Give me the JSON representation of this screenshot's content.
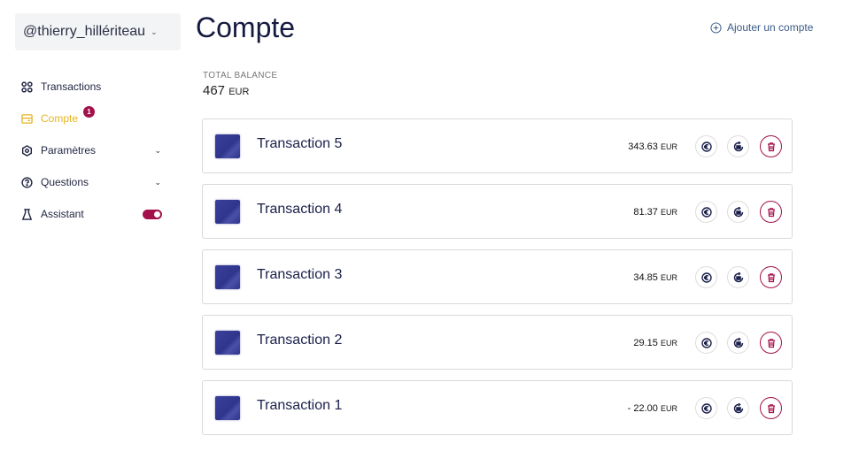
{
  "user": {
    "handle": "@thierry_hillériteau"
  },
  "sidebar": {
    "items": [
      {
        "label": "Transactions",
        "icon": "grid-icon"
      },
      {
        "label": "Compte",
        "icon": "wallet-icon",
        "active": true,
        "badge": "1"
      },
      {
        "label": "Paramètres",
        "icon": "gear-icon",
        "expandable": true
      },
      {
        "label": "Questions",
        "icon": "question-icon",
        "expandable": true
      },
      {
        "label": "Assistant",
        "icon": "flask-icon",
        "toggle": true
      }
    ]
  },
  "header": {
    "title": "Compte",
    "add_label": "Ajouter un compte"
  },
  "balance": {
    "label": "TOTAL BALANCE",
    "value": "467",
    "currency": "EUR"
  },
  "transactions": [
    {
      "name": "Transaction 5",
      "amount": "343.63",
      "currency": "EUR"
    },
    {
      "name": "Transaction 4",
      "amount": "81.37",
      "currency": "EUR"
    },
    {
      "name": "Transaction 3",
      "amount": "34.85",
      "currency": "EUR"
    },
    {
      "name": "Transaction 2",
      "amount": "29.15",
      "currency": "EUR"
    },
    {
      "name": "Transaction 1",
      "amount": "- 22.00",
      "currency": "EUR"
    }
  ],
  "colors": {
    "accent": "#a3114a",
    "active": "#e6b422",
    "title": "#14193f"
  }
}
